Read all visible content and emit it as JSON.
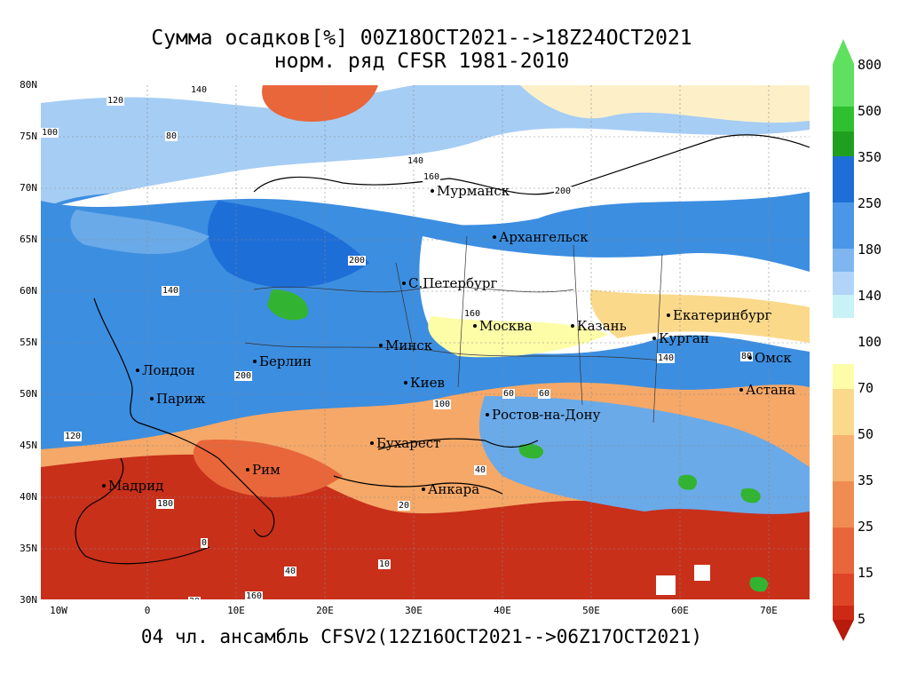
{
  "title_line1": "Сумма осадков[%] 00Z18OCT2021-->18Z24OCT2021",
  "title_line2": "норм. ряд CFSR 1981-2010",
  "footer": "04 чл. ансамбль CFSV2(12Z16OCT2021-->06Z17OCT2021)",
  "lat_labels": [
    "80N",
    "75N",
    "70N",
    "65N",
    "60N",
    "55N",
    "50N",
    "45N",
    "40N",
    "35N",
    "30N"
  ],
  "lon_labels": [
    "10W",
    "0",
    "10E",
    "20E",
    "30E",
    "40E",
    "50E",
    "60E",
    "70E"
  ],
  "cities": [
    {
      "name": "Мурманск"
    },
    {
      "name": "Архангельск"
    },
    {
      "name": "С.Петербург"
    },
    {
      "name": "Москва"
    },
    {
      "name": "Казань"
    },
    {
      "name": "Екатеринбург"
    },
    {
      "name": "Курган"
    },
    {
      "name": "Омск"
    },
    {
      "name": "Астана"
    },
    {
      "name": "Минск"
    },
    {
      "name": "Берлин"
    },
    {
      "name": "Лондон"
    },
    {
      "name": "Париж"
    },
    {
      "name": "Киев"
    },
    {
      "name": "Ростов-на-Дону"
    },
    {
      "name": "Бухарест"
    },
    {
      "name": "Рим"
    },
    {
      "name": "Мадрид"
    },
    {
      "name": "Анкара"
    }
  ],
  "contour_labels": [
    "140",
    "120",
    "80",
    "100",
    "160",
    "200",
    "140",
    "80",
    "60",
    "40",
    "20",
    "10",
    "0",
    "160",
    "200",
    "120",
    "180",
    "140",
    "100",
    "60",
    "40",
    "20",
    "200",
    "160",
    "140"
  ],
  "colorbar_top": {
    "labels": [
      "800",
      "500",
      "350",
      "250",
      "180",
      "140",
      "100"
    ],
    "colors": [
      "#5fe05f",
      "#2fc02f",
      "#1ea01e",
      "#1e6ed8",
      "#4a96e8",
      "#7fb6f0",
      "#b2d4f8",
      "#c9f2f7"
    ]
  },
  "colorbar_bottom": {
    "labels": [
      "70",
      "50",
      "35",
      "25",
      "15",
      "5"
    ],
    "colors": [
      "#fdfda8",
      "#fbd98a",
      "#f6b26e",
      "#f08c52",
      "#e8663a",
      "#de4426",
      "#cc2a14",
      "#b81a0c"
    ]
  },
  "colors": {
    "blue_wet": "#3c8ee0",
    "blue_mid": "#6aaae8",
    "blue_light": "#a6cdf4",
    "white_norm": "#ffffff",
    "orange": "#f5a868",
    "red_dry": "#c8301a",
    "green": "#32b432"
  }
}
